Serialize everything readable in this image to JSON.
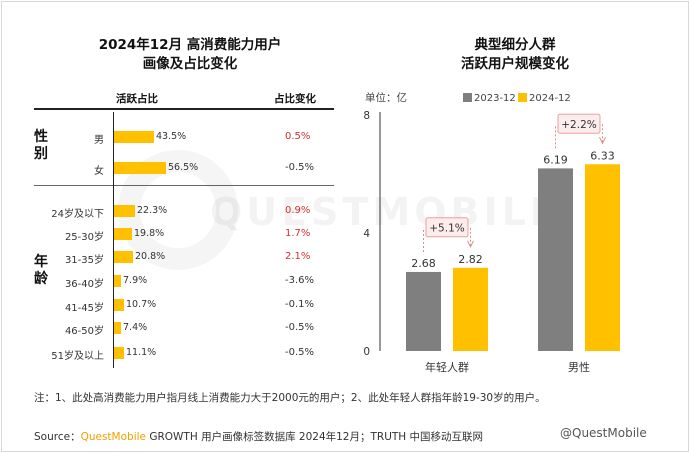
{
  "left": {
    "title_line1": "2024年12月 高消费能力用户",
    "title_line2": "画像及占比变化",
    "col_active": "活跃占比",
    "col_change": "占比变化",
    "groups": [
      {
        "label_chars": [
          "性",
          "别"
        ]
      },
      {
        "label_chars": [
          "年",
          "龄"
        ]
      }
    ],
    "rows": [
      {
        "label": "男",
        "value": 43.5,
        "pct": "43.5%",
        "change": "0.5%",
        "up": true
      },
      {
        "label": "女",
        "value": 56.5,
        "pct": "56.5%",
        "change": "-0.5%",
        "up": false
      },
      {
        "label": "24岁及以下",
        "value": 22.3,
        "pct": "22.3%",
        "change": "0.9%",
        "up": true
      },
      {
        "label": "25-30岁",
        "value": 19.8,
        "pct": "19.8%",
        "change": "1.7%",
        "up": true
      },
      {
        "label": "31-35岁",
        "value": 20.8,
        "pct": "20.8%",
        "change": "2.1%",
        "up": true
      },
      {
        "label": "36-40岁",
        "value": 7.9,
        "pct": "7.9%",
        "change": "-3.6%",
        "up": false
      },
      {
        "label": "41-45岁",
        "value": 10.7,
        "pct": "10.7%",
        "change": "-0.1%",
        "up": false
      },
      {
        "label": "46-50岁",
        "value": 7.4,
        "pct": "7.4%",
        "change": "-0.5%",
        "up": false
      },
      {
        "label": "51岁及以上",
        "value": 11.1,
        "pct": "11.1%",
        "change": "-0.5%",
        "up": false
      }
    ]
  },
  "right": {
    "title_line1": "典型细分人群",
    "title_line2": "活跃用户规模变化"
  },
  "chart_data": {
    "type": "bar",
    "title": "典型细分人群 活跃用户规模变化",
    "unit": "单位：亿",
    "categories": [
      "年轻人群",
      "男性"
    ],
    "series": [
      {
        "name": "2023-12",
        "values": [
          2.68,
          6.19
        ],
        "color": "#7f7f7f"
      },
      {
        "name": "2024-12",
        "values": [
          2.82,
          6.33
        ],
        "color": "#ffc000"
      }
    ],
    "value_labels": [
      [
        "2.68",
        "6.19"
      ],
      [
        "2.82",
        "6.33"
      ]
    ],
    "growth": [
      "+5.1%",
      "+2.2%"
    ],
    "ylim": [
      0,
      8
    ],
    "yticks": [
      "0",
      "4",
      "8"
    ],
    "grid": false,
    "legend": "top"
  },
  "note": "注：1、此处高消费能力用户指月线上消费能力大于2000元的用户；2、此处年轻人群指年龄19-30岁的用户。",
  "source": {
    "prefix": "Source：",
    "brand": "QuestMobile",
    "rest": " GROWTH 用户画像标签数据库 2024年12月；TRUTH 中国移动互联网",
    "tail": "@QuestMobile"
  },
  "watermark": "QUESTMOBILE",
  "colors": {
    "gold": "#ffc000",
    "gray": "#7f7f7f",
    "red": "#d2322d",
    "box_border": "#e8a0a0",
    "box_fill": "#fdecec"
  }
}
